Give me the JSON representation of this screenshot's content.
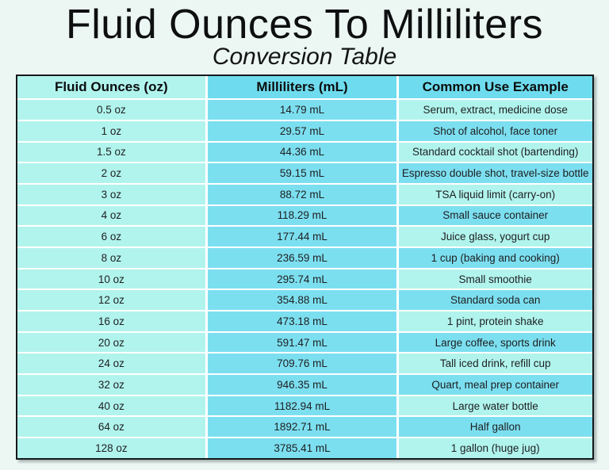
{
  "page": {
    "title": "Fluid Ounces To Milliliters",
    "subtitle": "Conversion Table"
  },
  "table": {
    "headers": [
      "Fluid Ounces (oz)",
      "Milliliters (mL)",
      "Common Use Example"
    ],
    "rows": [
      {
        "oz": "0.5 oz",
        "ml": "14.79 mL",
        "use": "Serum, extract, medicine dose"
      },
      {
        "oz": "1 oz",
        "ml": "29.57 mL",
        "use": "Shot of alcohol, face toner"
      },
      {
        "oz": "1.5 oz",
        "ml": "44.36 mL",
        "use": "Standard cocktail shot (bartending)"
      },
      {
        "oz": "2 oz",
        "ml": "59.15 mL",
        "use": "Espresso double shot, travel-size bottle"
      },
      {
        "oz": "3 oz",
        "ml": "88.72 mL",
        "use": "TSA liquid limit (carry-on)"
      },
      {
        "oz": "4 oz",
        "ml": "118.29 mL",
        "use": "Small sauce container"
      },
      {
        "oz": "6 oz",
        "ml": "177.44 mL",
        "use": "Juice glass, yogurt cup"
      },
      {
        "oz": "8 oz",
        "ml": "236.59 mL",
        "use": "1 cup (baking and cooking)"
      },
      {
        "oz": "10 oz",
        "ml": "295.74 mL",
        "use": "Small smoothie"
      },
      {
        "oz": "12 oz",
        "ml": "354.88 mL",
        "use": "Standard soda can"
      },
      {
        "oz": "16 oz",
        "ml": "473.18 mL",
        "use": "1 pint, protein shake"
      },
      {
        "oz": "20 oz",
        "ml": "591.47 mL",
        "use": "Large coffee, sports drink"
      },
      {
        "oz": "24 oz",
        "ml": "709.76 mL",
        "use": "Tall iced drink, refill cup"
      },
      {
        "oz": "32 oz",
        "ml": "946.35 mL",
        "use": "Quart, meal prep container"
      },
      {
        "oz": "40 oz",
        "ml": "1182.94 mL",
        "use": "Large water bottle"
      },
      {
        "oz": "64 oz",
        "ml": "1892.71 mL",
        "use": "Half gallon"
      },
      {
        "oz": "128 oz",
        "ml": "3785.41 mL",
        "use": "1 gallon (huge jug)"
      }
    ]
  },
  "colors": {
    "page_bg": "#ecf6f2",
    "light_cyan": "#b1f4ed",
    "medium_cyan": "#7cdff0",
    "header_cyan": "#6edcee",
    "border": "#15191b",
    "text": "#1d1f20"
  }
}
